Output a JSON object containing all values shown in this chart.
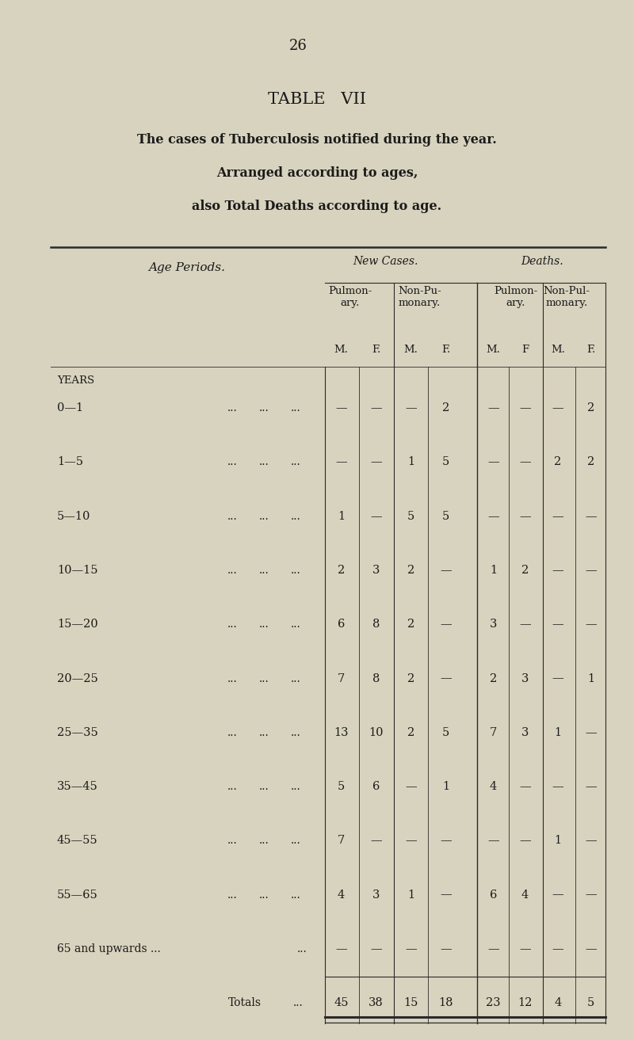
{
  "page_number": "26",
  "title": "TABLE   VII",
  "subtitle_lines": [
    "The cases of Tuberculosis notified during the year.",
    "Arranged according to ages,",
    "also Total Deaths according to age."
  ],
  "bg_color": "#d8d3be",
  "rows": [
    {
      "age": "0—1",
      "nc_pm": "—",
      "nc_pf": "—",
      "nc_npm": "—",
      "nc_npf": "2",
      "d_pm": "—",
      "d_pf": "—",
      "d_npm": "—",
      "d_npf": "2"
    },
    {
      "age": "1—5",
      "nc_pm": "—",
      "nc_pf": "—",
      "nc_npm": "1",
      "nc_npf": "5",
      "d_pm": "—",
      "d_pf": "—",
      "d_npm": "2",
      "d_npf": "2"
    },
    {
      "age": "5—10",
      "nc_pm": "1",
      "nc_pf": "—",
      "nc_npm": "5",
      "nc_npf": "5",
      "d_pm": "—",
      "d_pf": "—",
      "d_npm": "—",
      "d_npf": "—"
    },
    {
      "age": "10—15",
      "nc_pm": "2",
      "nc_pf": "3",
      "nc_npm": "2",
      "nc_npf": "—",
      "d_pm": "1",
      "d_pf": "2",
      "d_npm": "—",
      "d_npf": "—"
    },
    {
      "age": "15—20",
      "nc_pm": "6",
      "nc_pf": "8",
      "nc_npm": "2",
      "nc_npf": "—",
      "d_pm": "3",
      "d_pf": "—",
      "d_npm": "—",
      "d_npf": "—"
    },
    {
      "age": "20—25",
      "nc_pm": "7",
      "nc_pf": "8",
      "nc_npm": "2",
      "nc_npf": "—",
      "d_pm": "2",
      "d_pf": "3",
      "d_npm": "—",
      "d_npf": "1"
    },
    {
      "age": "25—35",
      "nc_pm": "13",
      "nc_pf": "10",
      "nc_npm": "2",
      "nc_npf": "5",
      "d_pm": "7",
      "d_pf": "3",
      "d_npm": "1",
      "d_npf": "—"
    },
    {
      "age": "35—45",
      "nc_pm": "5",
      "nc_pf": "6",
      "nc_npm": "—",
      "nc_npf": "1",
      "d_pm": "4",
      "d_pf": "—",
      "d_npm": "—",
      "d_npf": "—"
    },
    {
      "age": "45—55",
      "nc_pm": "7",
      "nc_pf": "—",
      "nc_npm": "—",
      "nc_npf": "—",
      "d_pm": "—",
      "d_pf": "—",
      "d_npm": "1",
      "d_npf": "—"
    },
    {
      "age": "55—65",
      "nc_pm": "4",
      "nc_pf": "3",
      "nc_npm": "1",
      "nc_npf": "—",
      "d_pm": "6",
      "d_pf": "4",
      "d_npm": "—",
      "d_npf": "—"
    },
    {
      "age": "65 and upwards ...",
      "nc_pm": "—",
      "nc_pf": "—",
      "nc_npm": "—",
      "nc_npf": "—",
      "d_pm": "—",
      "d_pf": "—",
      "d_npm": "—",
      "d_npf": "—",
      "is_upwards": true
    },
    {
      "age": "Totals",
      "nc_pm": "45",
      "nc_pf": "38",
      "nc_npm": "15",
      "nc_npf": "18",
      "d_pm": "23",
      "d_pf": "12",
      "d_npm": "4",
      "d_npf": "5",
      "is_total": true
    }
  ]
}
